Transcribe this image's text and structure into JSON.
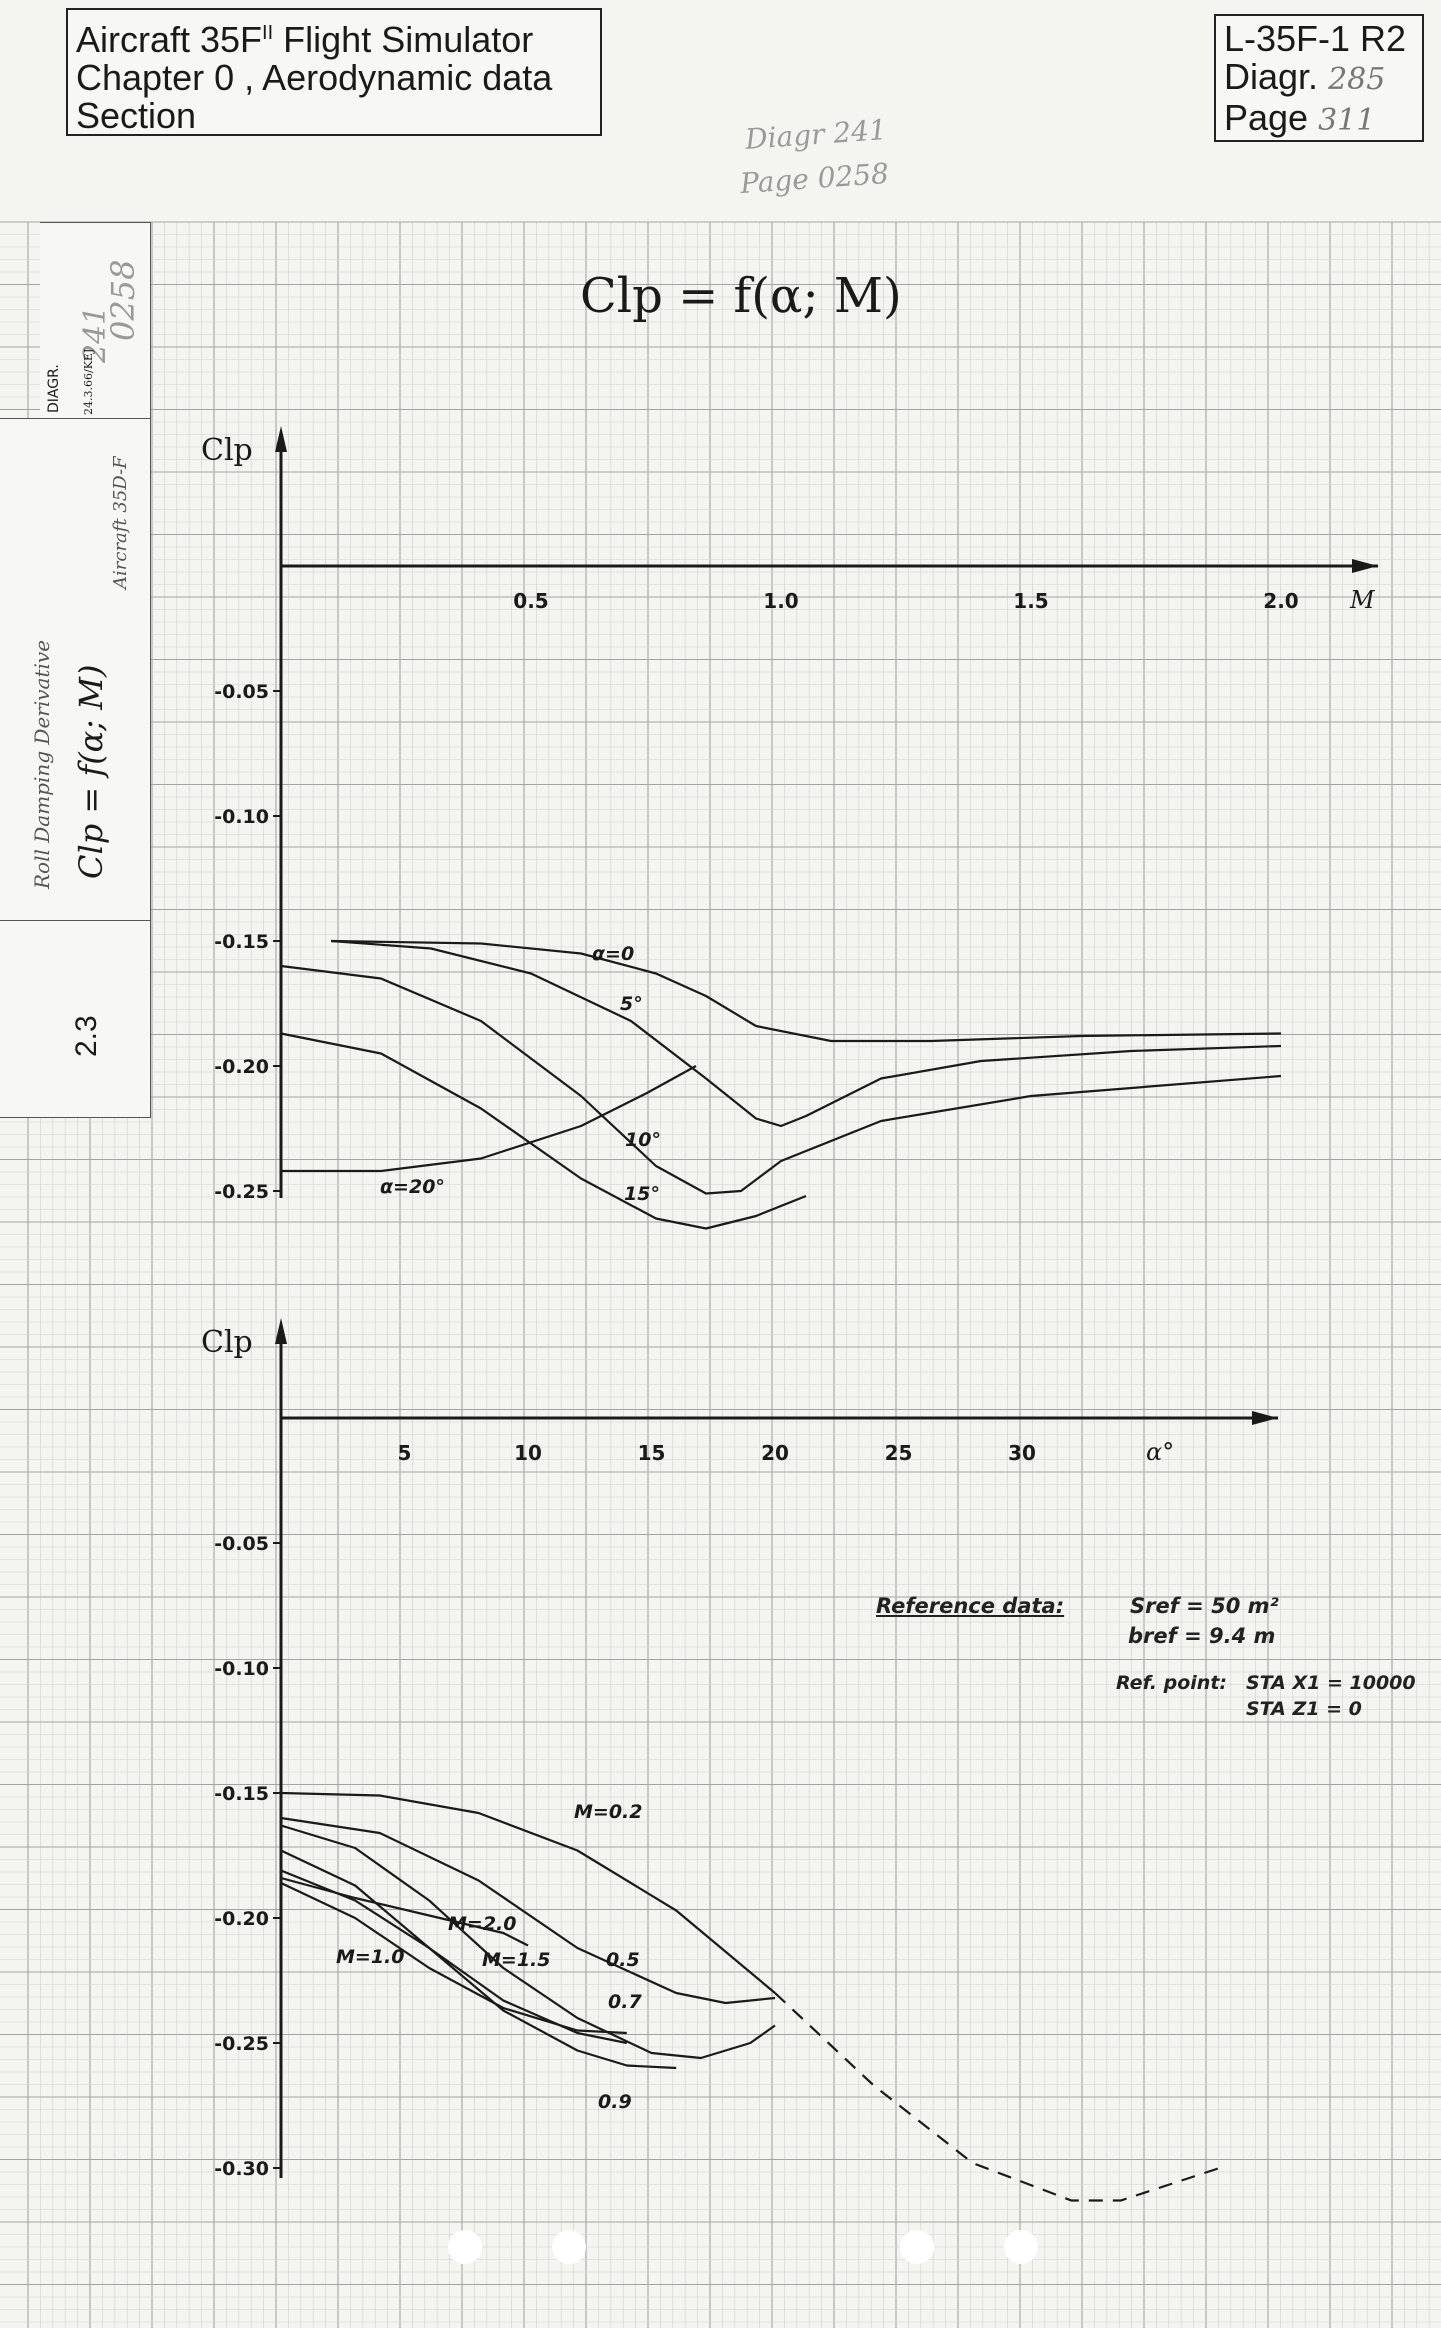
{
  "header": {
    "title_line1": "Aircraft 35F",
    "title_superscript": "II",
    "title_line1_rest": " Flight Simulator",
    "title_line2": "Chapter 0 , Aerodynamic data",
    "title_line3": "Section",
    "doc_id": "L-35F-1 R2",
    "diagr_label": "Diagr.",
    "diagr_value": "285",
    "page_label": "Page",
    "page_value": "311"
  },
  "annotations": {
    "old_diagr": "Diagr 241",
    "old_page": "Page 0258"
  },
  "sidebar": {
    "diagr_label": "DIAGR.",
    "diagr_value": "241",
    "date": "24.3.66/KEJ",
    "page_value": "0258",
    "aircraft": "Aircraft 35D-F",
    "subject": "Roll Damping Derivative",
    "formula": "Clp = f(α; M)",
    "section": "2.3"
  },
  "reference": {
    "label": "Reference data:",
    "sref": "Sref = 50 m²",
    "bref": "bref = 9.4 m",
    "ref_point_label": "Ref. point:",
    "sta_x": "STA X1 = 10000",
    "sta_z": "STA Z1 = 0"
  },
  "colors": {
    "ink": "#1a1a1a",
    "grid_minor": "#cfcfcf",
    "grid_major": "#a4a4a4",
    "paper": "#f4f4f1"
  },
  "chart_data": [
    {
      "type": "line",
      "title": "Clp = f(α; M)",
      "xlabel": "M",
      "ylabel": "Clp",
      "xlim": [
        0,
        2.2
      ],
      "ylim": [
        -0.26,
        0.025
      ],
      "x_ticks": [
        0.5,
        1.0,
        1.5,
        2.0
      ],
      "x_tick_labels": [
        "0.5",
        "1.0",
        "1.5",
        "2.0"
      ],
      "y_ticks": [
        -0.05,
        -0.1,
        -0.15,
        -0.2,
        -0.25
      ],
      "y_tick_labels": [
        "-0.05",
        "-0.10",
        "-0.15",
        "-0.20",
        "-0.25"
      ],
      "grid": true,
      "series": [
        {
          "name": "α=0",
          "x": [
            0.1,
            0.4,
            0.6,
            0.75,
            0.85,
            0.95,
            1.1,
            1.3,
            1.6,
            2.0
          ],
          "y": [
            -0.15,
            -0.151,
            -0.155,
            -0.163,
            -0.172,
            -0.184,
            -0.19,
            -0.19,
            -0.188,
            -0.187
          ]
        },
        {
          "name": "5°",
          "x": [
            0.1,
            0.3,
            0.5,
            0.7,
            0.85,
            0.95,
            1.0,
            1.05,
            1.2,
            1.4,
            1.7,
            2.0
          ],
          "y": [
            -0.15,
            -0.153,
            -0.163,
            -0.182,
            -0.205,
            -0.221,
            -0.224,
            -0.22,
            -0.205,
            -0.198,
            -0.194,
            -0.192
          ]
        },
        {
          "name": "10°",
          "x": [
            0.0,
            0.2,
            0.4,
            0.6,
            0.75,
            0.85,
            0.92,
            1.0,
            1.2,
            1.5,
            2.0
          ],
          "y": [
            -0.16,
            -0.165,
            -0.182,
            -0.212,
            -0.24,
            -0.251,
            -0.25,
            -0.238,
            -0.222,
            -0.212,
            -0.204
          ]
        },
        {
          "name": "15°",
          "x": [
            0.0,
            0.2,
            0.4,
            0.6,
            0.75,
            0.85,
            0.95,
            1.05
          ],
          "y": [
            -0.187,
            -0.195,
            -0.217,
            -0.245,
            -0.261,
            -0.265,
            -0.26,
            -0.252
          ]
        },
        {
          "name": "α=20°",
          "x": [
            0.0,
            0.2,
            0.4,
            0.6,
            0.73,
            0.83
          ],
          "y": [
            -0.242,
            -0.242,
            -0.237,
            -0.224,
            -0.211,
            -0.2
          ]
        }
      ]
    },
    {
      "type": "line",
      "xlabel": "α°",
      "ylabel": "Clp",
      "xlim": [
        0,
        40
      ],
      "ylim": [
        -0.3,
        0.025
      ],
      "x_ticks": [
        5,
        10,
        15,
        20,
        25,
        30
      ],
      "x_tick_labels": [
        "5",
        "10",
        "15",
        "20",
        "25",
        "30"
      ],
      "y_ticks": [
        -0.05,
        -0.1,
        -0.15,
        -0.2,
        -0.25,
        -0.3
      ],
      "y_tick_labels": [
        "-0.05",
        "-0.10",
        "-0.15",
        "-0.20",
        "-0.25",
        "-0.30"
      ],
      "grid": true,
      "series": [
        {
          "name": "M=0.2",
          "x": [
            0,
            4,
            8,
            12,
            16,
            20,
            24,
            28,
            32,
            34,
            38
          ],
          "y": [
            -0.15,
            -0.151,
            -0.158,
            -0.173,
            -0.197,
            -0.23,
            -0.267,
            -0.298,
            -0.313,
            -0.313,
            -0.3
          ],
          "dashed_from_x": 20
        },
        {
          "name": "0.5",
          "x": [
            0,
            4,
            8,
            12,
            16,
            18,
            20
          ],
          "y": [
            -0.16,
            -0.166,
            -0.185,
            -0.212,
            -0.23,
            -0.234,
            -0.232
          ]
        },
        {
          "name": "0.7",
          "x": [
            0,
            3,
            6,
            9,
            12,
            15,
            17,
            19,
            20
          ],
          "y": [
            -0.163,
            -0.172,
            -0.193,
            -0.22,
            -0.24,
            -0.254,
            -0.256,
            -0.25,
            -0.243
          ]
        },
        {
          "name": "0.9",
          "x": [
            0,
            3,
            6,
            9,
            12,
            14,
            16
          ],
          "y": [
            -0.173,
            -0.187,
            -0.212,
            -0.237,
            -0.253,
            -0.259,
            -0.26
          ]
        },
        {
          "name": "M=1.0",
          "x": [
            0,
            3,
            6,
            9,
            12,
            14
          ],
          "y": [
            -0.186,
            -0.2,
            -0.22,
            -0.236,
            -0.245,
            -0.246
          ]
        },
        {
          "name": "M=1.5",
          "x": [
            0,
            3,
            6,
            9,
            12,
            14
          ],
          "y": [
            -0.181,
            -0.193,
            -0.212,
            -0.233,
            -0.246,
            -0.25
          ]
        },
        {
          "name": "M=2.0",
          "x": [
            0,
            3,
            6,
            9,
            10
          ],
          "y": [
            -0.184,
            -0.192,
            -0.199,
            -0.206,
            -0.211
          ]
        }
      ]
    }
  ]
}
